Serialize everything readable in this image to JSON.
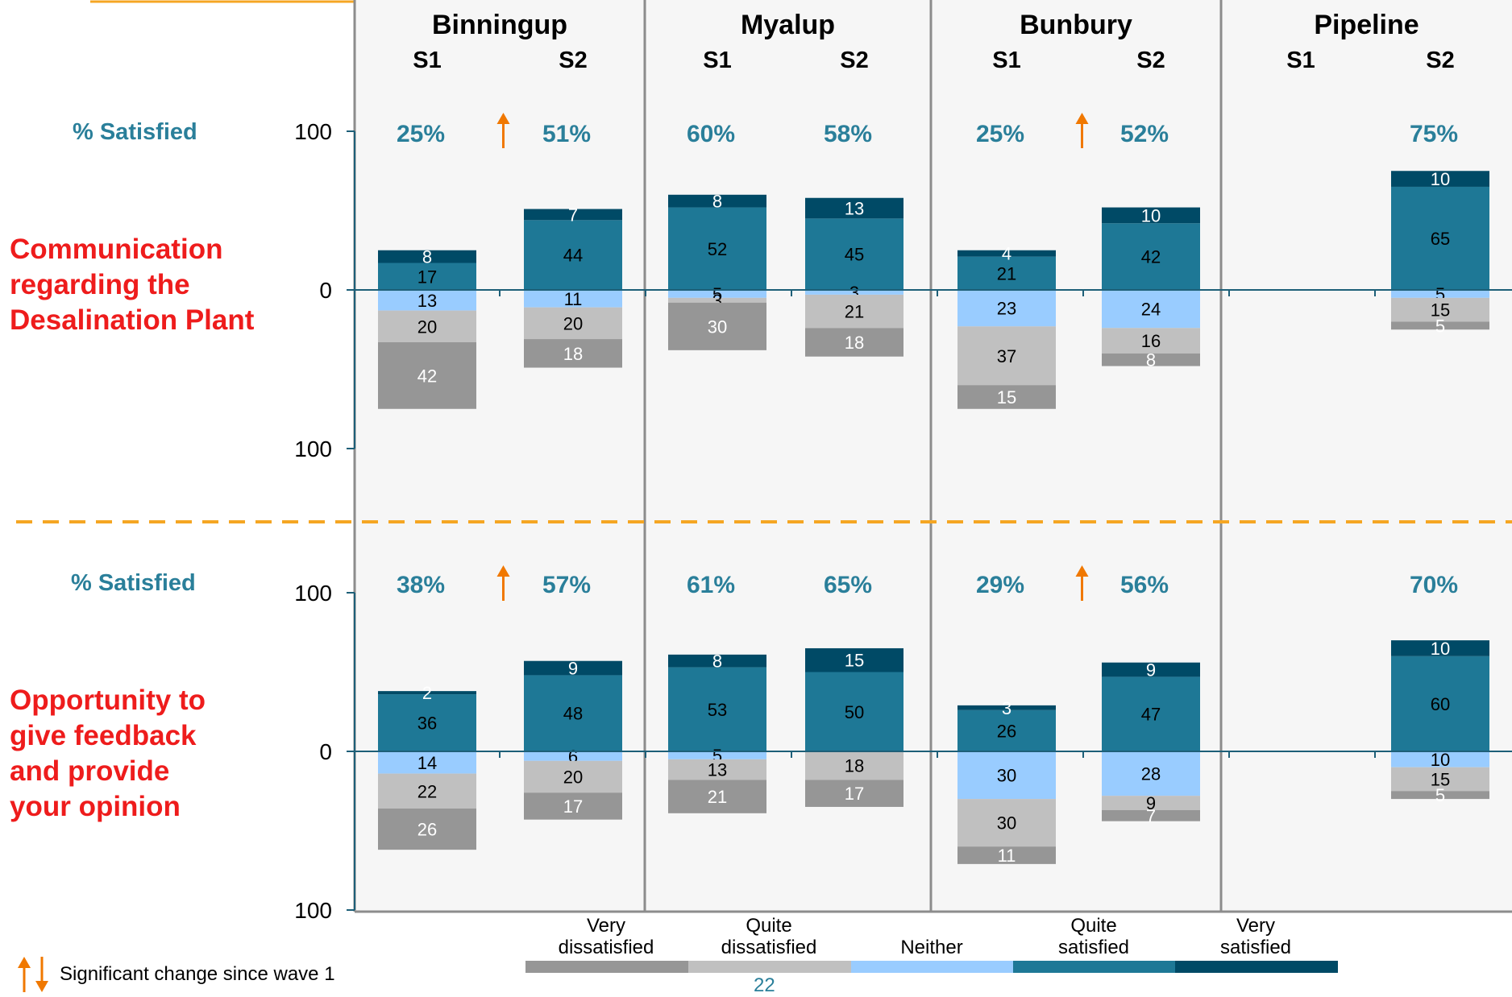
{
  "page_number": "22",
  "colors": {
    "very_dissatisfied": "#969696",
    "quite_dissatisfied": "#c0c0c0",
    "neither": "#99ccff",
    "quite_satisfied": "#1e7896",
    "very_satisfied": "#004a66",
    "row_label": "#ee1c1c",
    "pct": "#2a7f9a",
    "arrow": "#f07800",
    "divider": "#f5a623",
    "panel_bg": "#f6f6f6",
    "panel_border": "#8c8c8c",
    "axis": "#1d5f78"
  },
  "legend": [
    {
      "key": "very_dissatisfied",
      "label": "Very\ndissatisfied"
    },
    {
      "key": "quite_dissatisfied",
      "label": "Quite\ndissatisfied"
    },
    {
      "key": "neither",
      "label": "Neither"
    },
    {
      "key": "quite_satisfied",
      "label": "Quite\nsatisfied"
    },
    {
      "key": "very_satisfied",
      "label": "Very\nsatisfied"
    }
  ],
  "significance_note": "Significant change since wave 1",
  "chart_data": {
    "type": "bar",
    "subtype": "diverging-stacked",
    "ylim": [
      -100,
      100
    ],
    "yticks": [
      "100",
      "0",
      "100"
    ],
    "groups": [
      "Binningup",
      "Myalup",
      "Bunbury",
      "Pipeline"
    ],
    "waves": [
      "S1",
      "S2"
    ],
    "satisfied_label": "% Satisfied",
    "rows": [
      {
        "label": "Communication\nregarding the\nDesalination Plant",
        "bars": [
          {
            "group": "Binningup",
            "wave": "S1",
            "pct": "25%",
            "arrow": "",
            "very_dissatisfied": 42,
            "quite_dissatisfied": 20,
            "neither": 13,
            "quite_satisfied": 17,
            "very_satisfied": 8
          },
          {
            "group": "Binningup",
            "wave": "S2",
            "pct": "51%",
            "arrow": "up",
            "very_dissatisfied": 18,
            "quite_dissatisfied": 20,
            "neither": 11,
            "quite_satisfied": 44,
            "very_satisfied": 7
          },
          {
            "group": "Myalup",
            "wave": "S1",
            "pct": "60%",
            "arrow": "",
            "very_dissatisfied": 30,
            "quite_dissatisfied": 3,
            "neither": 5,
            "quite_satisfied": 52,
            "very_satisfied": 8
          },
          {
            "group": "Myalup",
            "wave": "S2",
            "pct": "58%",
            "arrow": "",
            "very_dissatisfied": 18,
            "quite_dissatisfied": 21,
            "neither": 3,
            "quite_satisfied": 45,
            "very_satisfied": 13
          },
          {
            "group": "Bunbury",
            "wave": "S1",
            "pct": "25%",
            "arrow": "",
            "very_dissatisfied": 15,
            "quite_dissatisfied": 37,
            "neither": 23,
            "quite_satisfied": 21,
            "very_satisfied": 4
          },
          {
            "group": "Bunbury",
            "wave": "S2",
            "pct": "52%",
            "arrow": "up",
            "very_dissatisfied": 8,
            "quite_dissatisfied": 16,
            "neither": 24,
            "quite_satisfied": 42,
            "very_satisfied": 10
          },
          {
            "group": "Pipeline",
            "wave": "S1",
            "pct": "",
            "arrow": "",
            "empty": true
          },
          {
            "group": "Pipeline",
            "wave": "S2",
            "pct": "75%",
            "arrow": "",
            "very_dissatisfied": 5,
            "quite_dissatisfied": 15,
            "neither": 5,
            "quite_satisfied": 65,
            "very_satisfied": 10
          }
        ]
      },
      {
        "label": "Opportunity to\ngive feedback\nand provide\nyour opinion",
        "bars": [
          {
            "group": "Binningup",
            "wave": "S1",
            "pct": "38%",
            "arrow": "",
            "very_dissatisfied": 26,
            "quite_dissatisfied": 22,
            "neither": 14,
            "quite_satisfied": 36,
            "very_satisfied": 2
          },
          {
            "group": "Binningup",
            "wave": "S2",
            "pct": "57%",
            "arrow": "up",
            "very_dissatisfied": 17,
            "quite_dissatisfied": 20,
            "neither": 6,
            "quite_satisfied": 48,
            "very_satisfied": 9
          },
          {
            "group": "Myalup",
            "wave": "S1",
            "pct": "61%",
            "arrow": "",
            "very_dissatisfied": 21,
            "quite_dissatisfied": 13,
            "neither": 5,
            "quite_satisfied": 53,
            "very_satisfied": 8
          },
          {
            "group": "Myalup",
            "wave": "S2",
            "pct": "65%",
            "arrow": "",
            "very_dissatisfied": 17,
            "quite_dissatisfied": 18,
            "neither": 0,
            "quite_satisfied": 50,
            "very_satisfied": 15
          },
          {
            "group": "Bunbury",
            "wave": "S1",
            "pct": "29%",
            "arrow": "",
            "very_dissatisfied": 11,
            "quite_dissatisfied": 30,
            "neither": 30,
            "quite_satisfied": 26,
            "very_satisfied": 3
          },
          {
            "group": "Bunbury",
            "wave": "S2",
            "pct": "56%",
            "arrow": "up",
            "very_dissatisfied": 7,
            "quite_dissatisfied": 9,
            "neither": 28,
            "quite_satisfied": 47,
            "very_satisfied": 9
          },
          {
            "group": "Pipeline",
            "wave": "S1",
            "pct": "",
            "arrow": "",
            "empty": true
          },
          {
            "group": "Pipeline",
            "wave": "S2",
            "pct": "70%",
            "arrow": "",
            "very_dissatisfied": 5,
            "quite_dissatisfied": 15,
            "neither": 10,
            "quite_satisfied": 60,
            "very_satisfied": 10
          }
        ]
      }
    ]
  }
}
